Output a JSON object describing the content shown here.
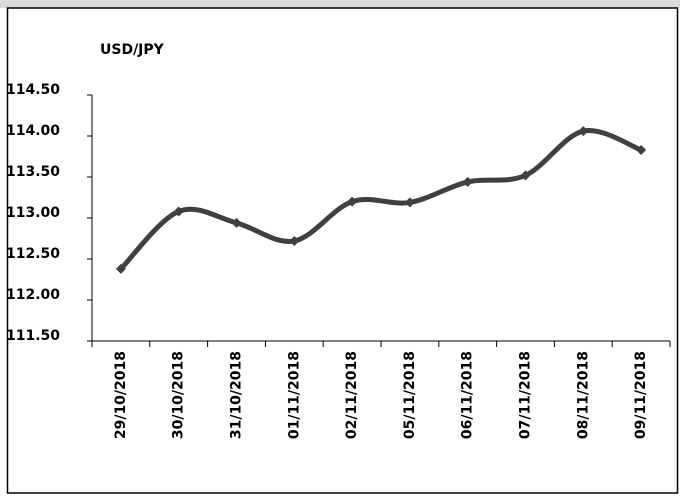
{
  "chart_data": {
    "type": "line",
    "title": "USD/JPY",
    "categories": [
      "29/10/2018",
      "30/10/2018",
      "31/10/2018",
      "01/11/2018",
      "02/11/2018",
      "05/11/2018",
      "06/11/2018",
      "07/11/2018",
      "08/11/2018",
      "09/11/2018"
    ],
    "series": [
      {
        "name": "USD/JPY",
        "color": "#404040",
        "values": [
          112.38,
          113.08,
          112.94,
          112.72,
          113.2,
          113.19,
          113.44,
          113.52,
          114.06,
          113.83
        ]
      }
    ],
    "ylim": [
      111.5,
      114.5
    ],
    "yticks": [
      {
        "value": 111.5,
        "label": "111.50"
      },
      {
        "value": 112,
        "label": "112.00"
      },
      {
        "value": 112.5,
        "label": "112.50"
      },
      {
        "value": 113,
        "label": "113.00"
      },
      {
        "value": 113.5,
        "label": "113.50"
      },
      {
        "value": 114,
        "label": "114.00"
      },
      {
        "value": 114.5,
        "label": "114.50"
      }
    ],
    "grid": false
  }
}
